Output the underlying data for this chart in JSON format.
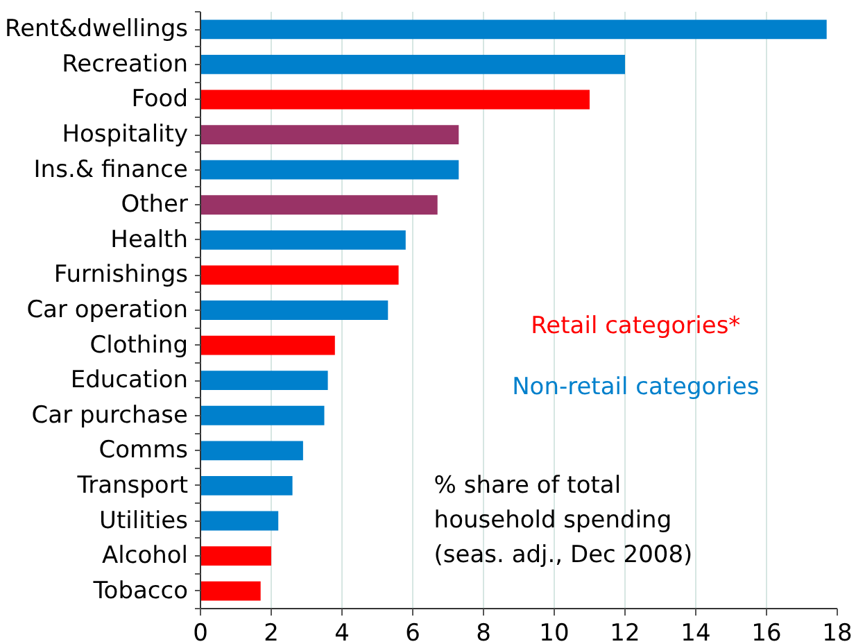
{
  "chart_data": {
    "type": "bar",
    "orientation": "horizontal",
    "categories": [
      "Rent&dwellings",
      "Recreation",
      "Food",
      "Hospitality",
      "Ins.& finance",
      "Other",
      "Health",
      "Furnishings",
      "Car operation",
      "Clothing",
      "Education",
      "Car purchase",
      "Comms",
      "Transport",
      "Utilities",
      "Alcohol",
      "Tobacco"
    ],
    "series": [
      {
        "name": "Retail categories*",
        "color": "#ff0000",
        "values": [
          null,
          null,
          11.0,
          null,
          null,
          null,
          null,
          5.6,
          null,
          3.8,
          null,
          null,
          null,
          null,
          null,
          2.0,
          1.7
        ]
      },
      {
        "name": "Non-retail categories",
        "color": "#0080cc",
        "values": [
          17.7,
          12.0,
          null,
          null,
          7.3,
          null,
          5.8,
          null,
          5.3,
          null,
          3.6,
          3.5,
          2.9,
          2.6,
          2.2,
          null,
          null
        ]
      },
      {
        "color": "#993366",
        "values": [
          null,
          null,
          null,
          7.3,
          null,
          6.7,
          null,
          null,
          null,
          null,
          null,
          null,
          null,
          null,
          null,
          null,
          null
        ]
      }
    ],
    "xlim": [
      0,
      18
    ],
    "xticks": [
      0,
      2,
      4,
      6,
      8,
      10,
      12,
      14,
      16,
      18
    ],
    "grid": "x",
    "legend": "right",
    "annotations": [
      "% share of total\nhousehold spending\n(seas. adj., Dec 2008)"
    ]
  }
}
